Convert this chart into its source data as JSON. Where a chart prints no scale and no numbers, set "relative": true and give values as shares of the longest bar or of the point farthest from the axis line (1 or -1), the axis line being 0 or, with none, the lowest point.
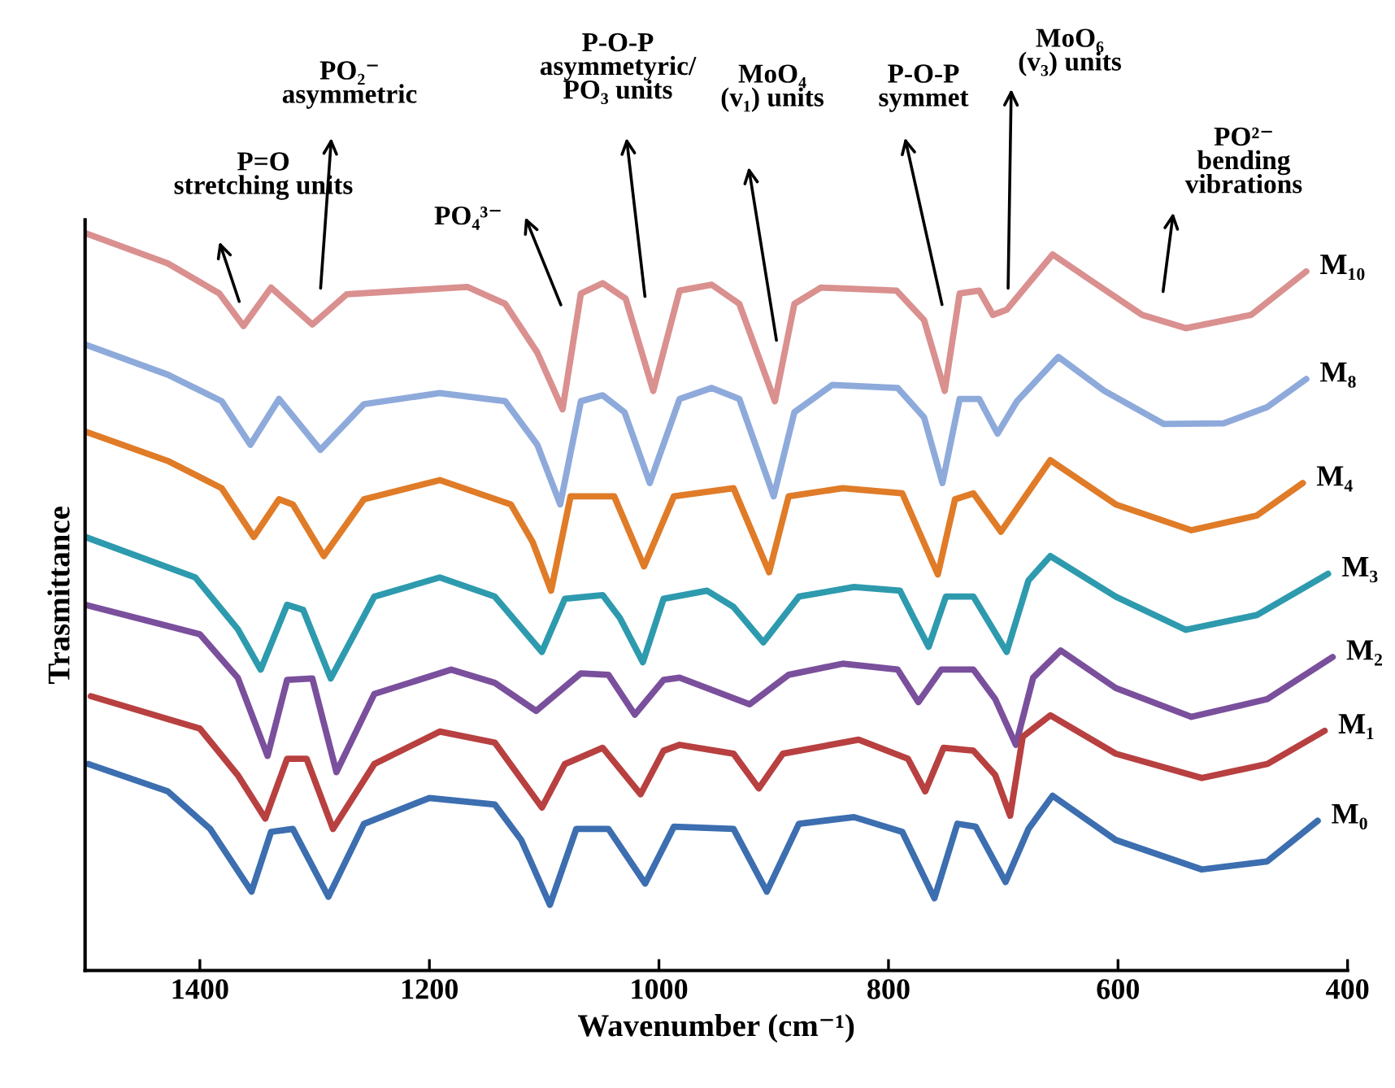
{
  "chart_data": {
    "type": "line",
    "relative": true,
    "xlabel": "Wavenumber (cm⁻¹)",
    "ylabel": "Trasmittance",
    "xlim": [
      1500,
      400
    ],
    "xticks": [
      1400,
      1200,
      1000,
      800,
      600,
      400
    ],
    "grid": false,
    "legend": false,
    "marker": "none",
    "line_style": "solid",
    "series": [
      {
        "name": "M₁₀",
        "color": "#d9908f",
        "x": [
          1500,
          1428,
          1383,
          1362,
          1338,
          1302,
          1272,
          1167,
          1134,
          1106,
          1084,
          1068,
          1049,
          1029,
          1005,
          982,
          954,
          930,
          899,
          882,
          859,
          793,
          769,
          751,
          738,
          721,
          709,
          697,
          657,
          621,
          579,
          541,
          484,
          436
        ],
        "values": [
          1.0,
          0.959,
          0.918,
          0.874,
          0.926,
          0.876,
          0.917,
          0.927,
          0.904,
          0.838,
          0.761,
          0.918,
          0.932,
          0.911,
          0.786,
          0.922,
          0.93,
          0.904,
          0.772,
          0.904,
          0.926,
          0.922,
          0.882,
          0.786,
          0.918,
          0.922,
          0.889,
          0.896,
          0.971,
          0.933,
          0.889,
          0.871,
          0.889,
          0.948
        ]
      },
      {
        "name": "M₈",
        "color": "#8eaadb",
        "x": [
          1500,
          1428,
          1381,
          1356,
          1331,
          1295,
          1257,
          1191,
          1134,
          1106,
          1086,
          1068,
          1049,
          1030,
          1008,
          982,
          954,
          930,
          900,
          882,
          849,
          792,
          769,
          753,
          738,
          721,
          705,
          688,
          652,
          612,
          560,
          508,
          470,
          436
        ],
        "values": [
          0.849,
          0.808,
          0.772,
          0.713,
          0.775,
          0.706,
          0.768,
          0.783,
          0.772,
          0.713,
          0.632,
          0.772,
          0.78,
          0.757,
          0.661,
          0.775,
          0.79,
          0.775,
          0.643,
          0.757,
          0.794,
          0.79,
          0.75,
          0.661,
          0.775,
          0.775,
          0.728,
          0.772,
          0.832,
          0.786,
          0.741,
          0.742,
          0.764,
          0.802
        ]
      },
      {
        "name": "M₄",
        "color": "#e07b28",
        "x": [
          1500,
          1428,
          1381,
          1353,
          1331,
          1319,
          1292,
          1257,
          1191,
          1129,
          1110,
          1094,
          1077,
          1039,
          1013,
          987,
          935,
          904,
          887,
          840,
          788,
          757,
          742,
          726,
          702,
          659,
          602,
          536,
          479,
          439
        ],
        "values": [
          0.731,
          0.691,
          0.654,
          0.588,
          0.639,
          0.632,
          0.562,
          0.639,
          0.665,
          0.632,
          0.581,
          0.515,
          0.643,
          0.643,
          0.548,
          0.643,
          0.654,
          0.54,
          0.643,
          0.654,
          0.647,
          0.537,
          0.639,
          0.647,
          0.595,
          0.692,
          0.632,
          0.597,
          0.617,
          0.661
        ]
      },
      {
        "name": "M₃",
        "color": "#2e9aae",
        "x": [
          1500,
          1404,
          1367,
          1347,
          1324,
          1310,
          1286,
          1248,
          1191,
          1143,
          1102,
          1082,
          1049,
          1034,
          1014,
          996,
          958,
          935,
          909,
          878,
          830,
          790,
          778,
          765,
          750,
          726,
          697,
          678,
          659,
          602,
          541,
          479,
          417
        ],
        "values": [
          0.588,
          0.533,
          0.463,
          0.408,
          0.496,
          0.489,
          0.396,
          0.507,
          0.533,
          0.507,
          0.432,
          0.504,
          0.509,
          0.478,
          0.418,
          0.504,
          0.515,
          0.493,
          0.445,
          0.507,
          0.52,
          0.515,
          0.478,
          0.439,
          0.507,
          0.507,
          0.432,
          0.529,
          0.562,
          0.507,
          0.462,
          0.482,
          0.538
        ]
      },
      {
        "name": "M₂",
        "color": "#7a4f9c",
        "x": [
          1500,
          1400,
          1367,
          1341,
          1324,
          1302,
          1281,
          1248,
          1181,
          1143,
          1107,
          1068,
          1044,
          1021,
          996,
          982,
          921,
          887,
          840,
          792,
          774,
          754,
          726,
          707,
          689,
          674,
          650,
          602,
          536,
          470,
          413
        ],
        "values": [
          0.496,
          0.456,
          0.397,
          0.291,
          0.394,
          0.396,
          0.269,
          0.375,
          0.408,
          0.39,
          0.352,
          0.403,
          0.401,
          0.347,
          0.394,
          0.397,
          0.361,
          0.401,
          0.416,
          0.408,
          0.364,
          0.408,
          0.408,
          0.368,
          0.306,
          0.397,
          0.434,
          0.383,
          0.344,
          0.368,
          0.425
        ]
      },
      {
        "name": "M₁",
        "color": "#b84040",
        "x": [
          1495,
          1400,
          1367,
          1343,
          1324,
          1307,
          1284,
          1248,
          1191,
          1143,
          1102,
          1082,
          1049,
          1016,
          996,
          982,
          935,
          913,
          892,
          826,
          783,
          768,
          752,
          726,
          707,
          694,
          683,
          659,
          602,
          527,
          470,
          420
        ],
        "values": [
          0.372,
          0.328,
          0.265,
          0.206,
          0.287,
          0.287,
          0.192,
          0.28,
          0.324,
          0.309,
          0.221,
          0.28,
          0.302,
          0.239,
          0.298,
          0.306,
          0.294,
          0.247,
          0.294,
          0.313,
          0.287,
          0.243,
          0.302,
          0.298,
          0.265,
          0.21,
          0.317,
          0.346,
          0.294,
          0.261,
          0.28,
          0.325
        ]
      },
      {
        "name": "M₀",
        "color": "#3c6eb0",
        "x": [
          1497,
          1428,
          1391,
          1355,
          1338,
          1319,
          1288,
          1257,
          1200,
          1143,
          1120,
          1095,
          1072,
          1044,
          1012,
          987,
          935,
          906,
          878,
          830,
          788,
          760,
          740,
          724,
          698,
          678,
          657,
          602,
          527,
          470,
          426
        ],
        "values": [
          0.28,
          0.243,
          0.192,
          0.107,
          0.188,
          0.192,
          0.1,
          0.199,
          0.234,
          0.225,
          0.177,
          0.089,
          0.192,
          0.192,
          0.118,
          0.195,
          0.192,
          0.107,
          0.199,
          0.208,
          0.188,
          0.098,
          0.199,
          0.195,
          0.12,
          0.192,
          0.237,
          0.177,
          0.137,
          0.148,
          0.203
        ]
      }
    ],
    "annotations": [
      "P=O\nstretching units",
      "PO₂⁻\nasymmetric",
      "PO₄³⁻",
      "P-O-P\nasymmetyric/\nPO₃ units",
      "MoO₄\n(v₁) units",
      "P-O-P\nsymmet",
      "MoO₆\n(v₃) units",
      "PO²⁻\nbending\nvibrations"
    ]
  }
}
